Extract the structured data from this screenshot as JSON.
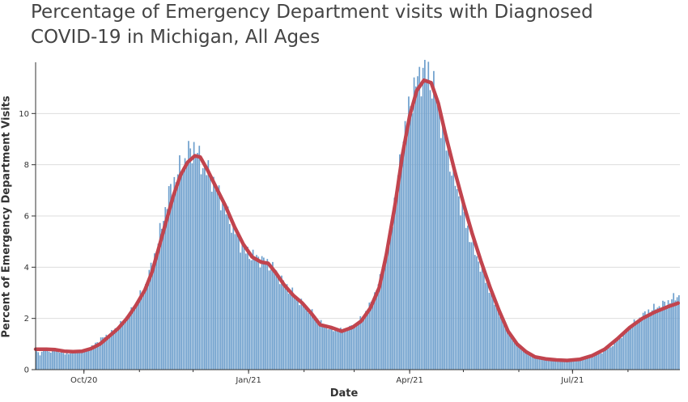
{
  "chart_data": {
    "type": "bar",
    "title": "Percentage of Emergency Department visits with Diagnosed COVID-19 in Michigan, All Ages",
    "xlabel": "Date",
    "ylabel": "Percent of Emergency Department Visits",
    "ylim": [
      0,
      12
    ],
    "yticks": [
      0,
      2,
      4,
      6,
      8,
      10
    ],
    "x_start": "2020-09-04",
    "x_end": "2021-08-29",
    "xticks": [
      {
        "date": "2020-10-01",
        "label": "Oct/20"
      },
      {
        "date": "2021-01-01",
        "label": "Jan/21"
      },
      {
        "date": "2021-04-01",
        "label": "Apr/21"
      },
      {
        "date": "2021-07-01",
        "label": "Jul/21"
      }
    ],
    "grid": true,
    "bar_color": "#6fa0cd",
    "line_color": "#c1444e",
    "series": [
      {
        "type": "bar",
        "points": [
          [
            "2020-09-04",
            0.7
          ],
          [
            "2020-09-06",
            0.6
          ],
          [
            "2020-09-08",
            0.8
          ],
          [
            "2020-09-12",
            0.7
          ],
          [
            "2020-09-15",
            0.8
          ],
          [
            "2020-09-20",
            0.6
          ],
          [
            "2020-09-25",
            0.7
          ],
          [
            "2020-10-01",
            0.75
          ],
          [
            "2020-10-05",
            0.9
          ],
          [
            "2020-10-10",
            1.2
          ],
          [
            "2020-10-15",
            1.4
          ],
          [
            "2020-10-20",
            1.7
          ],
          [
            "2020-10-25",
            2.1
          ],
          [
            "2020-10-30",
            2.6
          ],
          [
            "2020-11-04",
            3.3
          ],
          [
            "2020-11-08",
            4.2
          ],
          [
            "2020-11-12",
            5.3
          ],
          [
            "2020-11-16",
            6.6
          ],
          [
            "2020-11-20",
            7.4
          ],
          [
            "2020-11-24",
            7.9
          ],
          [
            "2020-11-28",
            8.4
          ],
          [
            "2020-12-01",
            8.7
          ],
          [
            "2020-12-04",
            8.2
          ],
          [
            "2020-12-08",
            7.8
          ],
          [
            "2020-12-12",
            7.3
          ],
          [
            "2020-12-16",
            6.7
          ],
          [
            "2020-12-20",
            6.0
          ],
          [
            "2020-12-25",
            5.2
          ],
          [
            "2020-12-30",
            4.6
          ],
          [
            "2021-01-04",
            4.4
          ],
          [
            "2021-01-08",
            4.3
          ],
          [
            "2021-01-12",
            4.1
          ],
          [
            "2021-01-16",
            3.8
          ],
          [
            "2021-01-20",
            3.4
          ],
          [
            "2021-01-25",
            3.0
          ],
          [
            "2021-01-30",
            2.6
          ],
          [
            "2021-02-04",
            2.3
          ],
          [
            "2021-02-10",
            1.8
          ],
          [
            "2021-02-16",
            1.6
          ],
          [
            "2021-02-22",
            1.5
          ],
          [
            "2021-02-28",
            1.7
          ],
          [
            "2021-03-05",
            2.0
          ],
          [
            "2021-03-10",
            2.6
          ],
          [
            "2021-03-15",
            3.5
          ],
          [
            "2021-03-20",
            5.0
          ],
          [
            "2021-03-24",
            7.0
          ],
          [
            "2021-03-28",
            9.0
          ],
          [
            "2021-04-01",
            10.5
          ],
          [
            "2021-04-05",
            11.3
          ],
          [
            "2021-04-08",
            11.7
          ],
          [
            "2021-04-11",
            11.5
          ],
          [
            "2021-04-14",
            11.0
          ],
          [
            "2021-04-18",
            9.8
          ],
          [
            "2021-04-22",
            8.4
          ],
          [
            "2021-04-27",
            7.0
          ],
          [
            "2021-05-02",
            5.7
          ],
          [
            "2021-05-07",
            4.6
          ],
          [
            "2021-05-12",
            3.7
          ],
          [
            "2021-05-17",
            2.8
          ],
          [
            "2021-05-22",
            2.0
          ],
          [
            "2021-05-27",
            1.3
          ],
          [
            "2021-06-01",
            0.9
          ],
          [
            "2021-06-06",
            0.6
          ],
          [
            "2021-06-12",
            0.45
          ],
          [
            "2021-06-18",
            0.4
          ],
          [
            "2021-06-25",
            0.35
          ],
          [
            "2021-07-01",
            0.35
          ],
          [
            "2021-07-08",
            0.45
          ],
          [
            "2021-07-15",
            0.6
          ],
          [
            "2021-07-22",
            0.9
          ],
          [
            "2021-07-29",
            1.4
          ],
          [
            "2021-08-05",
            1.9
          ],
          [
            "2021-08-12",
            2.3
          ],
          [
            "2021-08-19",
            2.5
          ],
          [
            "2021-08-24",
            2.7
          ],
          [
            "2021-08-29",
            2.9
          ]
        ]
      },
      {
        "type": "line",
        "points": [
          [
            "2020-09-04",
            0.8
          ],
          [
            "2020-09-10",
            0.8
          ],
          [
            "2020-09-15",
            0.78
          ],
          [
            "2020-09-20",
            0.72
          ],
          [
            "2020-09-25",
            0.7
          ],
          [
            "2020-09-30",
            0.72
          ],
          [
            "2020-10-05",
            0.82
          ],
          [
            "2020-10-10",
            1.0
          ],
          [
            "2020-10-15",
            1.3
          ],
          [
            "2020-10-20",
            1.6
          ],
          [
            "2020-10-25",
            2.0
          ],
          [
            "2020-10-30",
            2.5
          ],
          [
            "2020-11-04",
            3.1
          ],
          [
            "2020-11-08",
            3.8
          ],
          [
            "2020-11-12",
            4.8
          ],
          [
            "2020-11-16",
            5.8
          ],
          [
            "2020-11-20",
            6.8
          ],
          [
            "2020-11-24",
            7.6
          ],
          [
            "2020-11-28",
            8.1
          ],
          [
            "2020-12-02",
            8.35
          ],
          [
            "2020-12-05",
            8.3
          ],
          [
            "2020-12-09",
            7.8
          ],
          [
            "2020-12-14",
            7.1
          ],
          [
            "2020-12-19",
            6.4
          ],
          [
            "2020-12-24",
            5.6
          ],
          [
            "2020-12-29",
            4.9
          ],
          [
            "2021-01-03",
            4.4
          ],
          [
            "2021-01-08",
            4.2
          ],
          [
            "2021-01-12",
            4.15
          ],
          [
            "2021-01-16",
            3.8
          ],
          [
            "2021-01-21",
            3.3
          ],
          [
            "2021-01-26",
            2.9
          ],
          [
            "2021-01-31",
            2.6
          ],
          [
            "2021-02-05",
            2.2
          ],
          [
            "2021-02-10",
            1.75
          ],
          [
            "2021-02-16",
            1.65
          ],
          [
            "2021-02-22",
            1.5
          ],
          [
            "2021-02-28",
            1.65
          ],
          [
            "2021-03-05",
            1.9
          ],
          [
            "2021-03-10",
            2.4
          ],
          [
            "2021-03-15",
            3.2
          ],
          [
            "2021-03-19",
            4.5
          ],
          [
            "2021-03-24",
            6.5
          ],
          [
            "2021-03-28",
            8.4
          ],
          [
            "2021-04-01",
            9.9
          ],
          [
            "2021-04-05",
            10.9
          ],
          [
            "2021-04-09",
            11.3
          ],
          [
            "2021-04-13",
            11.2
          ],
          [
            "2021-04-17",
            10.4
          ],
          [
            "2021-04-21",
            9.2
          ],
          [
            "2021-04-26",
            7.8
          ],
          [
            "2021-05-01",
            6.5
          ],
          [
            "2021-05-06",
            5.3
          ],
          [
            "2021-05-11",
            4.2
          ],
          [
            "2021-05-16",
            3.2
          ],
          [
            "2021-05-21",
            2.3
          ],
          [
            "2021-05-26",
            1.5
          ],
          [
            "2021-05-31",
            1.0
          ],
          [
            "2021-06-05",
            0.7
          ],
          [
            "2021-06-10",
            0.5
          ],
          [
            "2021-06-16",
            0.42
          ],
          [
            "2021-06-22",
            0.38
          ],
          [
            "2021-06-28",
            0.36
          ],
          [
            "2021-07-05",
            0.4
          ],
          [
            "2021-07-12",
            0.55
          ],
          [
            "2021-07-19",
            0.8
          ],
          [
            "2021-07-26",
            1.2
          ],
          [
            "2021-08-02",
            1.65
          ],
          [
            "2021-08-09",
            2.0
          ],
          [
            "2021-08-16",
            2.25
          ],
          [
            "2021-08-23",
            2.45
          ],
          [
            "2021-08-29",
            2.6
          ]
        ]
      }
    ]
  }
}
